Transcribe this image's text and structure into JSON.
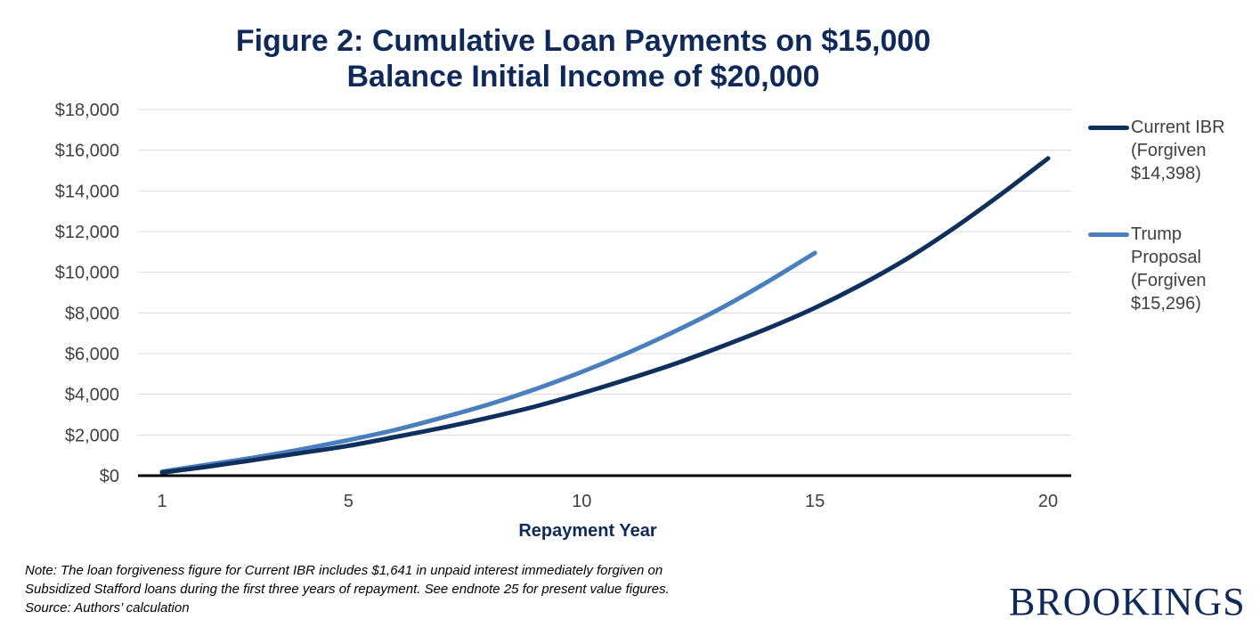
{
  "title": {
    "line1": "Figure 2: Cumulative Loan Payments on $15,000",
    "line2": "Balance Initial Income of $20,000"
  },
  "chart_data": {
    "type": "line",
    "title": "Figure 2: Cumulative Loan Payments on $15,000 Balance Initial Income of $20,000",
    "xlabel": "Repayment Year",
    "ylabel": "",
    "xlim": [
      1,
      20
    ],
    "ylim": [
      0,
      18000
    ],
    "x_ticks": [
      1,
      5,
      10,
      15,
      20
    ],
    "y_ticks": [
      "$0",
      "$2,000",
      "$4,000",
      "$6,000",
      "$8,000",
      "$10,000",
      "$12,000",
      "$14,000",
      "$16,000",
      "$18,000"
    ],
    "y_tick_values": [
      0,
      2000,
      4000,
      6000,
      8000,
      10000,
      12000,
      14000,
      16000,
      18000
    ],
    "grid": "horizontal",
    "legend_position": "right",
    "series": [
      {
        "name": "Current IBR (Forgiven $14,398)",
        "legend_lines": [
          "Current IBR",
          "(Forgiven",
          "$14,398)"
        ],
        "color": "#0f2f5c",
        "x": [
          1,
          2,
          3,
          4,
          5,
          6,
          7,
          8,
          9,
          10,
          11,
          12,
          13,
          14,
          15,
          16,
          17,
          18,
          19,
          20
        ],
        "values": [
          150,
          450,
          780,
          1120,
          1470,
          1900,
          2350,
          2850,
          3400,
          4050,
          4750,
          5500,
          6350,
          7250,
          8250,
          9400,
          10700,
          12200,
          13850,
          15600
        ]
      },
      {
        "name": "Trump Proposal (Forgiven $15,296)",
        "legend_lines": [
          "Trump",
          "Proposal",
          "(Forgiven",
          "$15,296)"
        ],
        "color": "#4a7fbd",
        "x": [
          1,
          2,
          3,
          4,
          5,
          6,
          7,
          8,
          9,
          10,
          11,
          12,
          13,
          14,
          15
        ],
        "values": [
          200,
          550,
          900,
          1300,
          1750,
          2250,
          2850,
          3500,
          4250,
          5100,
          6050,
          7100,
          8250,
          9550,
          10950
        ]
      }
    ]
  },
  "note": {
    "line1": "Note: The loan forgiveness figure for Current IBR includes $1,641 in unpaid interest immediately forgiven on",
    "line2": "Subsidized Stafford loans during the first three years of repayment. See endnote 25 for present value figures.",
    "line3": "Source: Authors’ calculation"
  },
  "logo": "BROOKINGS"
}
